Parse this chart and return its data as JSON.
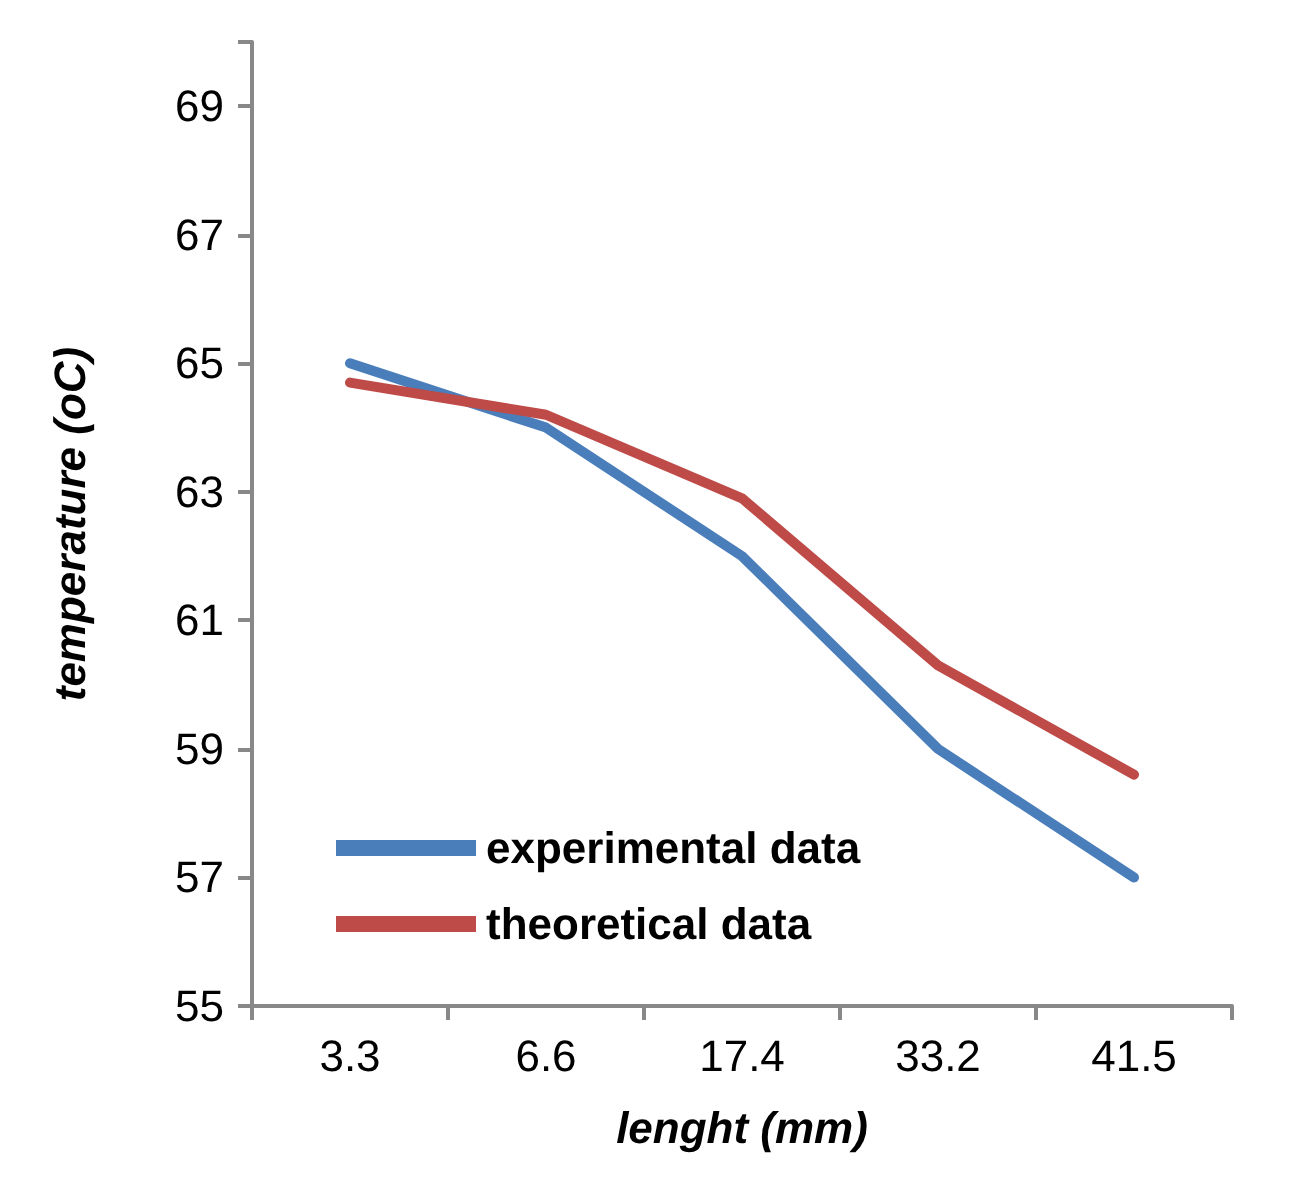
{
  "chart_data": {
    "type": "line",
    "xlabel": "lenght (mm)",
    "ylabel": "temperature (oC)",
    "categories": [
      "3.3",
      "6.6",
      "17.4",
      "33.2",
      "41.5"
    ],
    "series": [
      {
        "name": "experimental data",
        "color": "#4a7ebb",
        "values": [
          65,
          64,
          62,
          59,
          57
        ]
      },
      {
        "name": "theoretical data",
        "color": "#be4b48",
        "values": [
          64.7,
          64.2,
          62.9,
          60.3,
          58.6
        ]
      }
    ],
    "ylim": [
      55,
      70
    ],
    "yticks": [
      55,
      57,
      59,
      61,
      63,
      65,
      67,
      69,
      {
        "value": 70,
        "label": null
      }
    ],
    "grid": false,
    "legend": "bottom left",
    "marker": "none",
    "line_style": "solid"
  }
}
